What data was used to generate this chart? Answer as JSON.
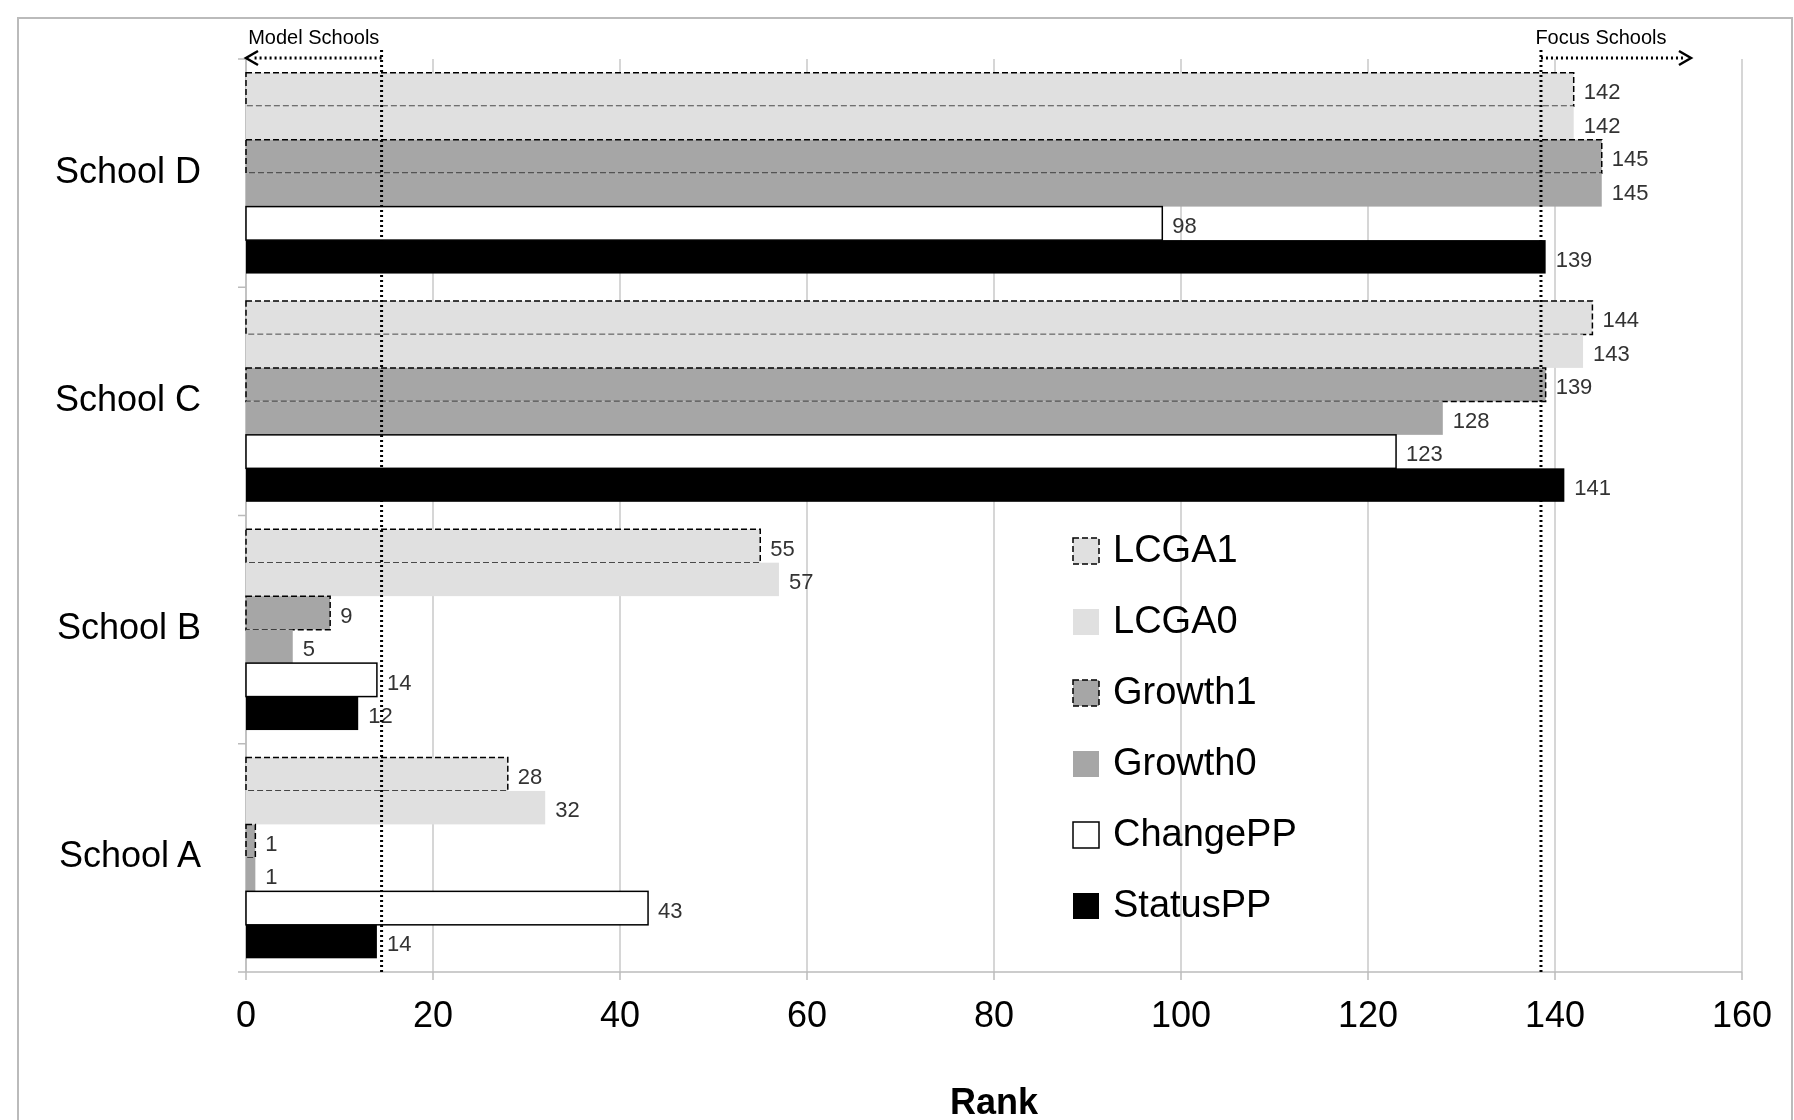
{
  "chart_data": {
    "type": "bar",
    "orientation": "horizontal",
    "xlabel": "Rank",
    "categories": [
      "School D",
      "School C",
      "School B",
      "School A"
    ],
    "series": [
      {
        "name": "LCGA1",
        "color": "#e0e0e0",
        "line_style": "dashed",
        "values": [
          142,
          144,
          55,
          28
        ]
      },
      {
        "name": "LCGA0",
        "color": "#e0e0e0",
        "values": [
          142,
          143,
          57,
          32
        ]
      },
      {
        "name": "Growth1",
        "color": "#a6a6a6",
        "line_style": "dashed",
        "values": [
          145,
          139,
          9,
          1
        ]
      },
      {
        "name": "Growth0",
        "color": "#a6a6a6",
        "values": [
          145,
          128,
          5,
          1
        ]
      },
      {
        "name": "ChangePP",
        "color": "#ffffff",
        "line_style": "solid",
        "values": [
          98,
          123,
          14,
          43
        ]
      },
      {
        "name": "StatusPP",
        "color": "#000000",
        "values": [
          139,
          141,
          12,
          14
        ]
      }
    ],
    "xlim": [
      0,
      160
    ],
    "xticks": [
      0,
      20,
      40,
      60,
      80,
      100,
      120,
      140,
      160
    ],
    "grid": "x",
    "data_labels": true,
    "legend": "bottom right",
    "ref_lines": [
      {
        "axis": "x",
        "value": 14.5,
        "label": "Model Schools",
        "line_style": "dotted",
        "color": "#000000"
      },
      {
        "axis": "x",
        "value": 138.5,
        "label": "Focus Schools",
        "line_style": "dotted",
        "color": "#000000"
      }
    ]
  }
}
